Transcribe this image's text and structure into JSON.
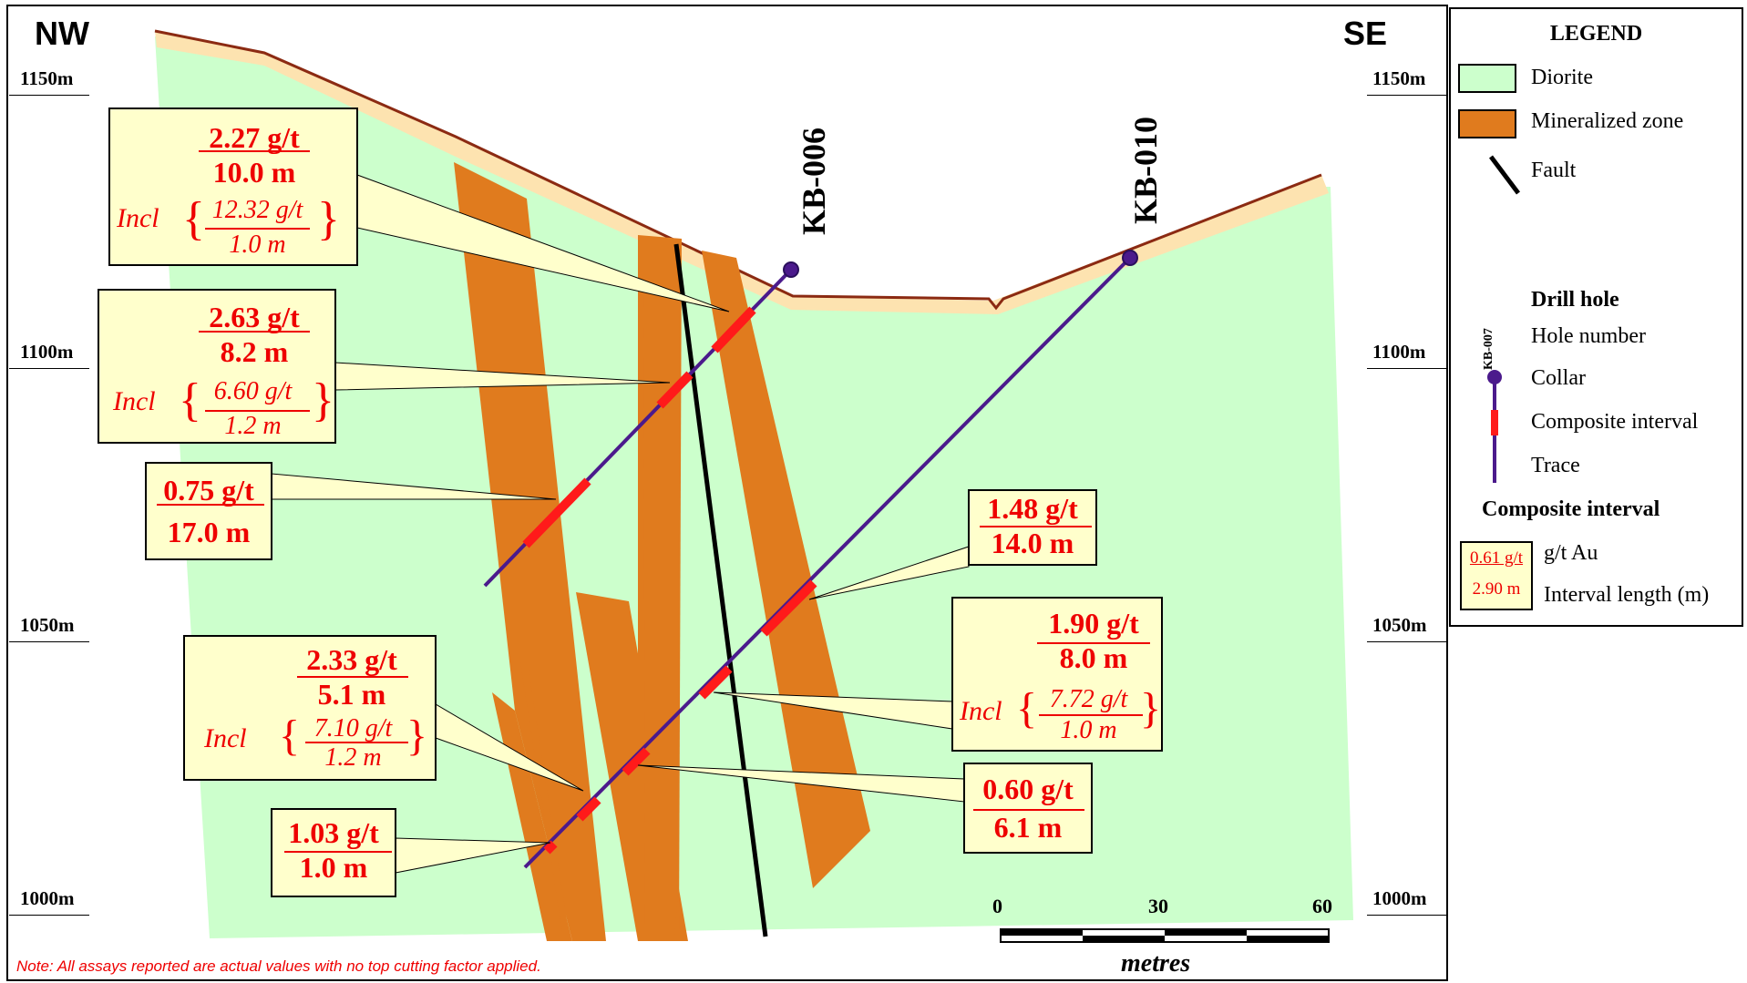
{
  "corners": {
    "left": "NW",
    "right": "SE"
  },
  "elevations": [
    "1150m",
    "1100m",
    "1050m",
    "1000m"
  ],
  "drill_holes": [
    {
      "name": "KB-006"
    },
    {
      "name": "KB-010"
    }
  ],
  "callouts": {
    "c1": {
      "grade": "2.27 g/t",
      "length": "10.0 m",
      "incl_prefix": "Incl",
      "incl_grade": "12.32 g/t",
      "incl_length": "1.0 m"
    },
    "c2": {
      "grade": "2.63 g/t",
      "length": "8.2 m",
      "incl_prefix": "Incl",
      "incl_grade": "6.60 g/t",
      "incl_length": "1.2 m"
    },
    "c3": {
      "grade": "0.75 g/t",
      "length": "17.0 m"
    },
    "c4": {
      "grade": "2.33 g/t",
      "length": "5.1 m",
      "incl_prefix": "Incl",
      "incl_grade": "7.10 g/t",
      "incl_length": "1.2 m"
    },
    "c5": {
      "grade": "1.03 g/t",
      "length": "1.0 m"
    },
    "c6": {
      "grade": "1.48 g/t",
      "length": "14.0 m"
    },
    "c7": {
      "grade": "1.90 g/t",
      "length": "8.0 m",
      "incl_prefix": "Incl",
      "incl_grade": "7.72 g/t",
      "incl_length": "1.0 m"
    },
    "c8": {
      "grade": "0.60 g/t",
      "length": "6.1 m"
    }
  },
  "scale": {
    "ticks": [
      "0",
      "30",
      "60"
    ],
    "unit": "metres"
  },
  "note": "Note:  All assays reported are actual values with no top cutting factor applied.",
  "legend": {
    "title": "LEGEND",
    "diorite": "Diorite",
    "mineralized": "Mineralized  zone",
    "fault": "Fault",
    "drill_hole_heading": "Drill hole",
    "sample_hole": "KB-007",
    "hole_number": "Hole number",
    "collar": "Collar",
    "composite": "Composite interval",
    "trace": "Trace",
    "composite_heading": "Composite interval",
    "sample_grade": "0.61 g/t",
    "sample_length": "2.90 m",
    "grade_desc": "g/t Au",
    "length_desc": "Interval length (m)"
  },
  "colors": {
    "diorite": "#ccffcc",
    "mineralized": "#e07b1e",
    "overburden": "#fde3b0",
    "topo_line": "#8b2a12",
    "trace": "#4b1a8c",
    "composite": "#ff1a1a",
    "callout_fill": "#ffffcc"
  }
}
